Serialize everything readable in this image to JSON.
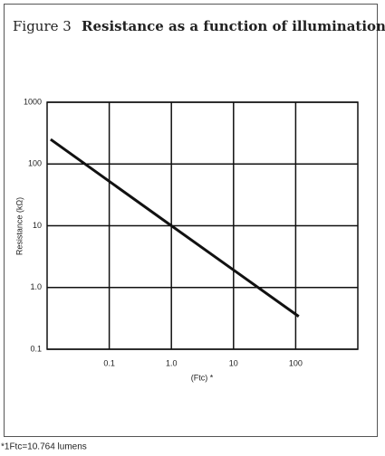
{
  "chart_data": {
    "type": "line",
    "figure_label": "Figure 3",
    "title": "Resistance as a function of illumination",
    "x_label": "(Ftc) *",
    "y_label": "Resistance (kΩ)",
    "note": "*1Ftc=10.764 lumens",
    "x": [
      0.0114,
      1,
      112
    ],
    "values": [
      250,
      10,
      0.34
    ],
    "color": "#111111",
    "log_x": true,
    "log_y": true,
    "grid": true,
    "xlim": [
      0.01,
      1000
    ],
    "xticks": [
      0.1,
      {
        "value": 1,
        "label": "1.0"
      },
      10,
      100
    ],
    "ylim": [
      0.1,
      1000
    ],
    "yticks": [
      {
        "value": 1000,
        "label": "1000"
      },
      100,
      10,
      {
        "value": 1,
        "label": "1.0"
      },
      0.1
    ]
  }
}
